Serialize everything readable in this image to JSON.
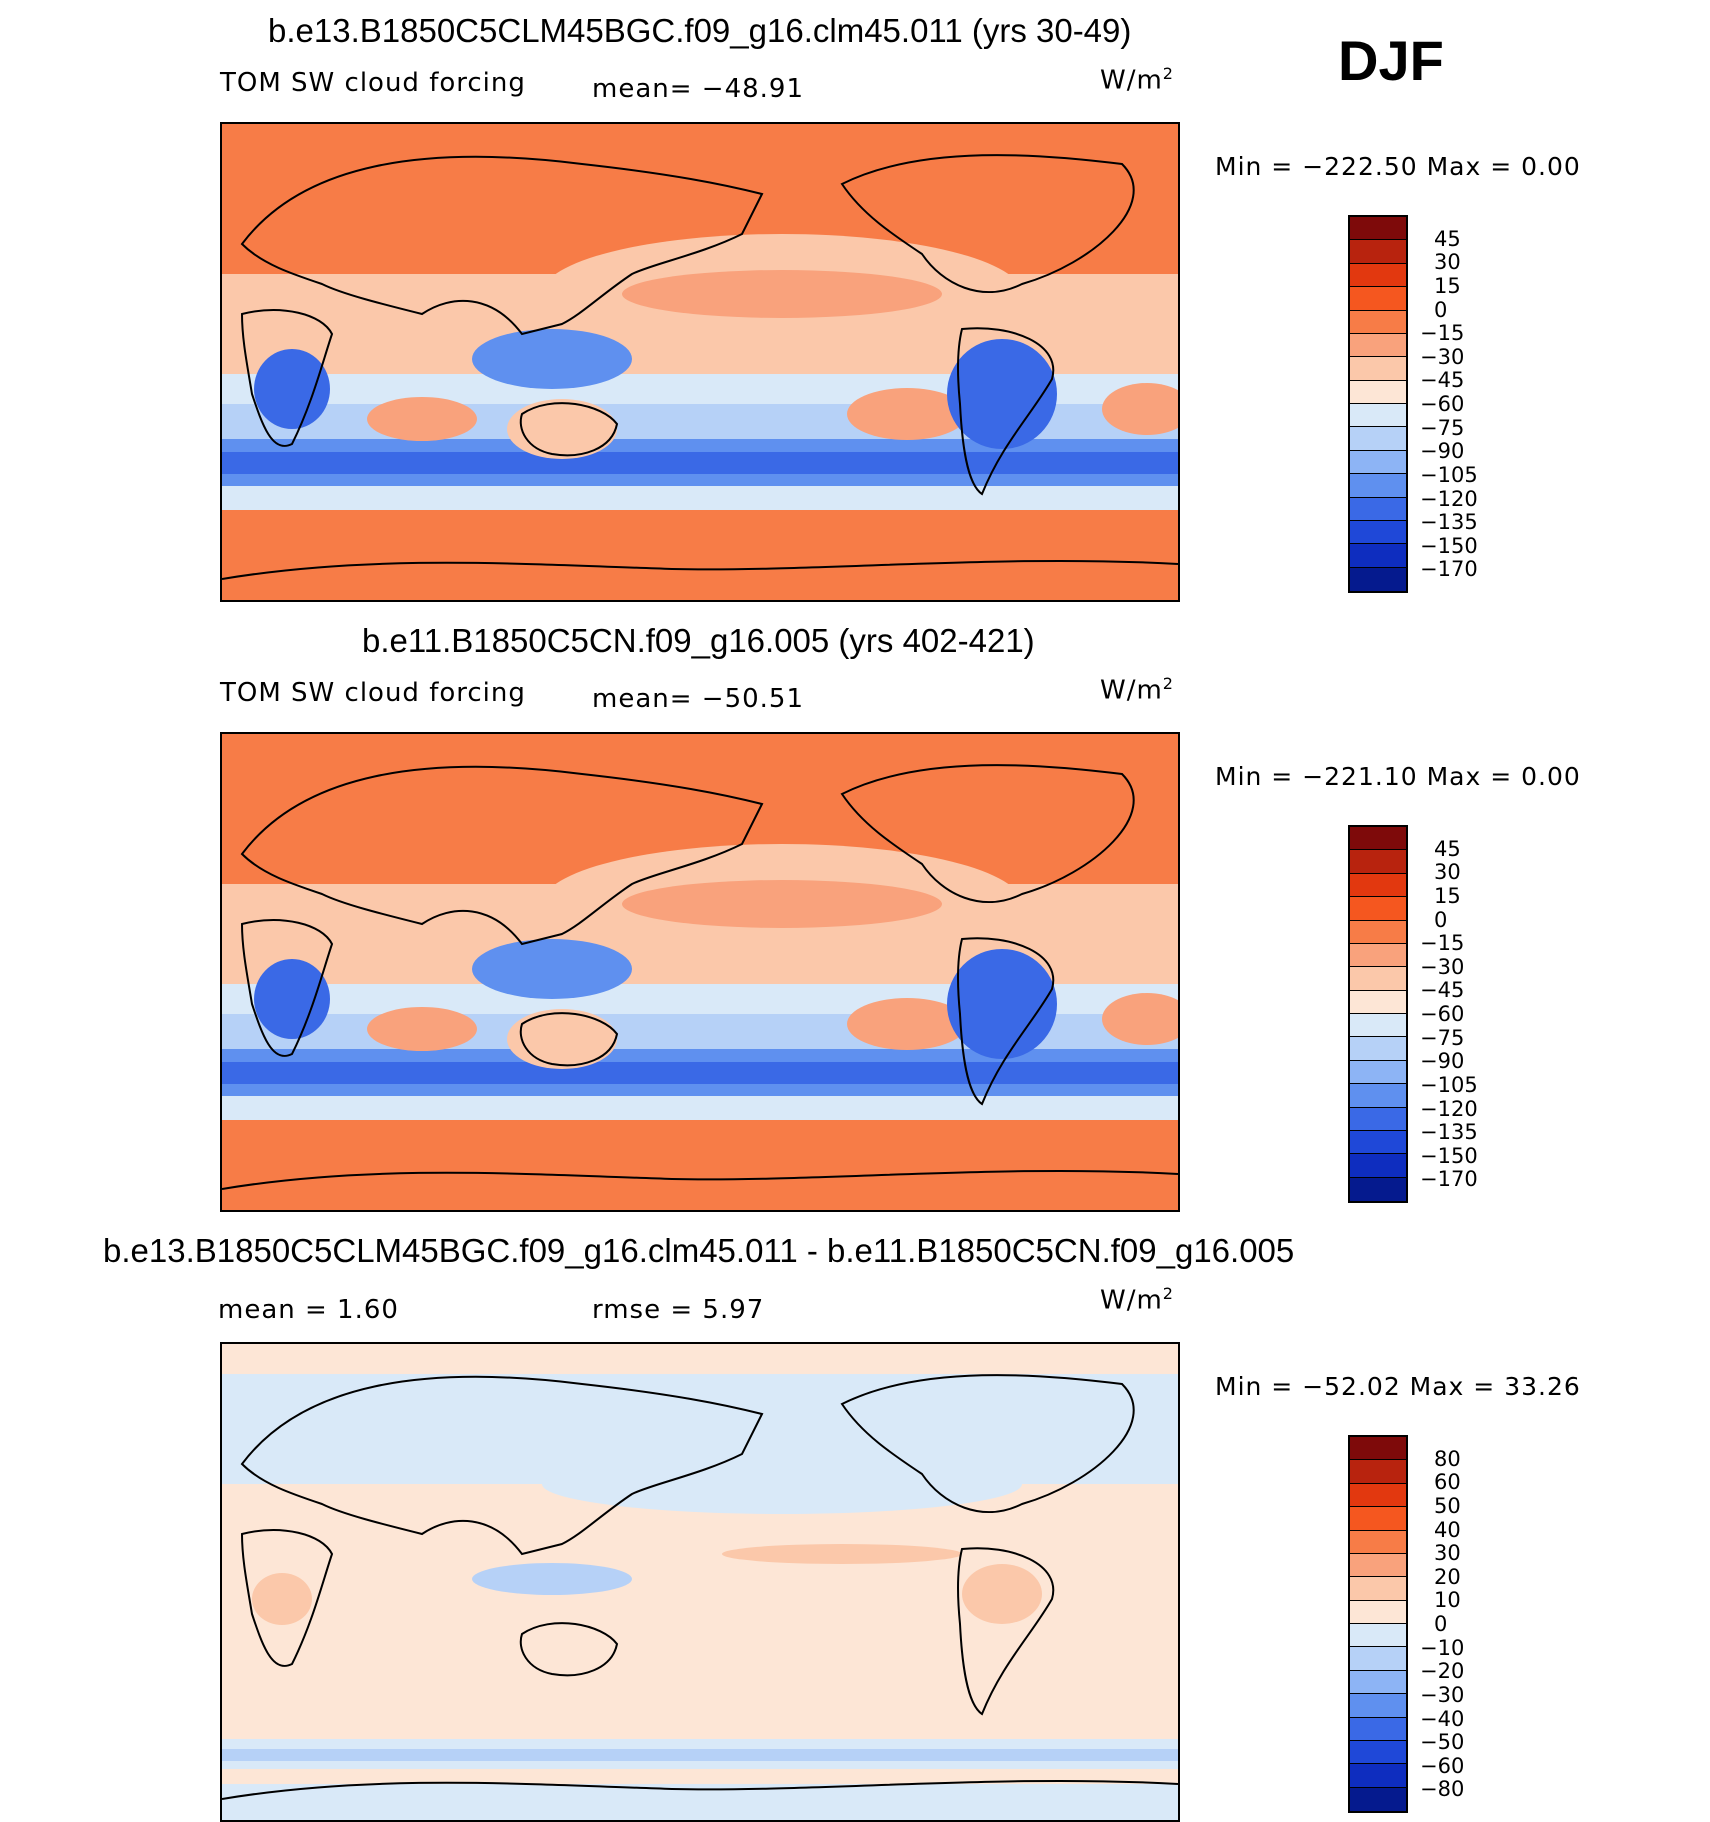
{
  "season": "DJF",
  "units_base": "W/m",
  "units_exp": "2",
  "panels": [
    {
      "title": "b.e13.B1850C5CLM45BGC.f09_g16.clm45.011 (yrs 30-49)",
      "left_label": "TOM SW cloud forcing",
      "stat_label": "mean= −48.91",
      "minmax": "Min  =  −222.50  Max  =      0.00"
    },
    {
      "title": "b.e11.B1850C5CN.f09_g16.005 (yrs 402-421)",
      "left_label": "TOM SW cloud forcing",
      "stat_label": "mean= −50.51",
      "minmax": "Min  =  −221.10  Max  =      0.00"
    },
    {
      "title": "b.e13.B1850C5CLM45BGC.f09_g16.clm45.011 - b.e11.B1850C5CN.f09_g16.005",
      "left_label": "mean  =     1.60",
      "stat_label": "rmse  =     5.97",
      "minmax": "Min  =  −52.02  Max  =   33.26"
    }
  ],
  "chart_data": [
    {
      "type": "heatmap",
      "title": "b.e13.B1850C5CLM45BGC.f09_g16.clm45.011 (yrs 30-49)",
      "variable": "TOM SW cloud forcing",
      "units": "W/m2",
      "mean": -48.91,
      "min": -222.5,
      "max": 0.0,
      "colorbar_levels": [
        "45",
        "30",
        "15",
        "0",
        "−15",
        "−30",
        "−45",
        "−60",
        "−75",
        "−90",
        "−105",
        "−120",
        "−135",
        "−150",
        "−170"
      ],
      "colorbar_colors": [
        "#7e0a0a",
        "#b8230e",
        "#e2380f",
        "#f5571f",
        "#f77c47",
        "#f9a27c",
        "#fbc8aa",
        "#fde6d6",
        "#d9e9f8",
        "#b6d1f7",
        "#8db4f5",
        "#5f90ef",
        "#3a69e6",
        "#1f48d8",
        "#0e2dbf",
        "#051a8e"
      ]
    },
    {
      "type": "heatmap",
      "title": "b.e11.B1850C5CN.f09_g16.005 (yrs 402-421)",
      "variable": "TOM SW cloud forcing",
      "units": "W/m2",
      "mean": -50.51,
      "min": -221.1,
      "max": 0.0,
      "colorbar_levels": [
        "45",
        "30",
        "15",
        "0",
        "−15",
        "−30",
        "−45",
        "−60",
        "−75",
        "−90",
        "−105",
        "−120",
        "−135",
        "−150",
        "−170"
      ],
      "colorbar_colors": [
        "#7e0a0a",
        "#b8230e",
        "#e2380f",
        "#f5571f",
        "#f77c47",
        "#f9a27c",
        "#fbc8aa",
        "#fde6d6",
        "#d9e9f8",
        "#b6d1f7",
        "#8db4f5",
        "#5f90ef",
        "#3a69e6",
        "#1f48d8",
        "#0e2dbf",
        "#051a8e"
      ]
    },
    {
      "type": "heatmap",
      "title": "b.e13.B1850C5CLM45BGC.f09_g16.clm45.011 - b.e11.B1850C5CN.f09_g16.005",
      "units": "W/m2",
      "mean": 1.6,
      "rmse": 5.97,
      "min": -52.02,
      "max": 33.26,
      "colorbar_levels": [
        "80",
        "60",
        "50",
        "40",
        "30",
        "20",
        "10",
        "0",
        "−10",
        "−20",
        "−30",
        "−40",
        "−50",
        "−60",
        "−80"
      ],
      "colorbar_colors": [
        "#7e0a0a",
        "#b8230e",
        "#e2380f",
        "#f5571f",
        "#f77c47",
        "#f9a27c",
        "#fbc8aa",
        "#fde6d6",
        "#d9e9f8",
        "#b6d1f7",
        "#8db4f5",
        "#5f90ef",
        "#3a69e6",
        "#1f48d8",
        "#0e2dbf",
        "#051a8e"
      ]
    }
  ]
}
